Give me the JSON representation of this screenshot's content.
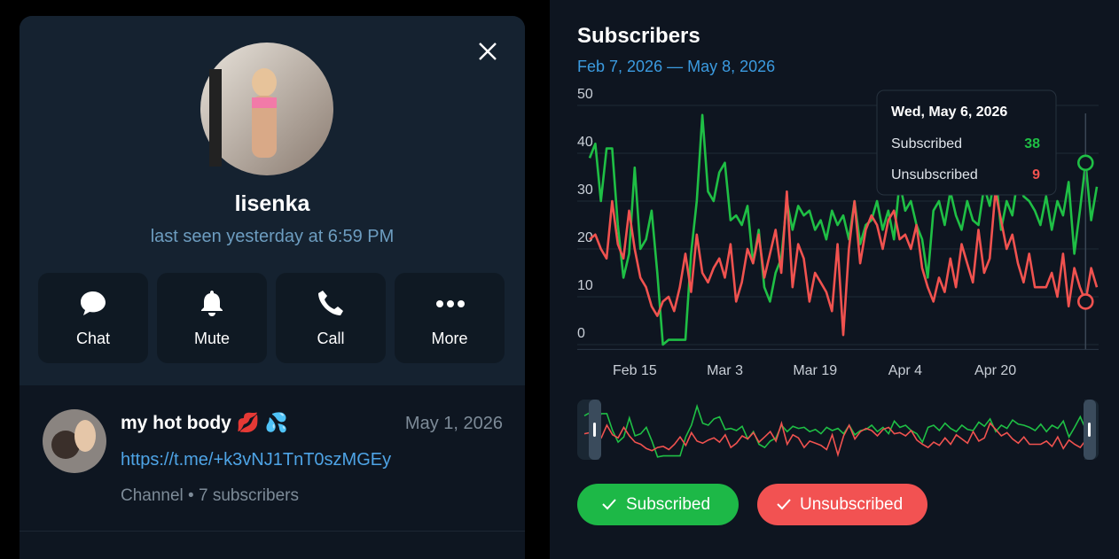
{
  "profile": {
    "name": "lisenka",
    "status": "last seen yesterday at 6:59 PM",
    "actions": [
      "Chat",
      "Mute",
      "Call",
      "More"
    ],
    "channel": {
      "title": "my hot body 💋 💦",
      "date": "May 1, 2026",
      "link": "https://t.me/+k3vNJ1TnT0szMGEy",
      "meta": "Channel • 7 subscribers"
    }
  },
  "chart_data": {
    "type": "line",
    "title": "Subscribers",
    "subtitle": "Feb 7, 2026 — May 8, 2026",
    "x": [
      "2026-02-07",
      "2026-02-08",
      "2026-02-09",
      "2026-02-10",
      "2026-02-11",
      "2026-02-12",
      "2026-02-13",
      "2026-02-14",
      "2026-02-15",
      "2026-02-16",
      "2026-02-17",
      "2026-02-18",
      "2026-02-19",
      "2026-02-20",
      "2026-02-21",
      "2026-02-22",
      "2026-02-23",
      "2026-02-24",
      "2026-02-25",
      "2026-02-26",
      "2026-02-27",
      "2026-02-28",
      "2026-03-01",
      "2026-03-02",
      "2026-03-03",
      "2026-03-04",
      "2026-03-05",
      "2026-03-06",
      "2026-03-07",
      "2026-03-08",
      "2026-03-09",
      "2026-03-10",
      "2026-03-11",
      "2026-03-12",
      "2026-03-13",
      "2026-03-14",
      "2026-03-15",
      "2026-03-16",
      "2026-03-17",
      "2026-03-18",
      "2026-03-19",
      "2026-03-20",
      "2026-03-21",
      "2026-03-22",
      "2026-03-23",
      "2026-03-24",
      "2026-03-25",
      "2026-03-26",
      "2026-03-27",
      "2026-03-28",
      "2026-03-29",
      "2026-03-30",
      "2026-03-31",
      "2026-04-01",
      "2026-04-02",
      "2026-04-03",
      "2026-04-04",
      "2026-04-05",
      "2026-04-06",
      "2026-04-07",
      "2026-04-08",
      "2026-04-09",
      "2026-04-10",
      "2026-04-11",
      "2026-04-12",
      "2026-04-13",
      "2026-04-14",
      "2026-04-15",
      "2026-04-16",
      "2026-04-17",
      "2026-04-18",
      "2026-04-19",
      "2026-04-20",
      "2026-04-21",
      "2026-04-22",
      "2026-04-23",
      "2026-04-24",
      "2026-04-25",
      "2026-04-26",
      "2026-04-27",
      "2026-04-28",
      "2026-04-29",
      "2026-04-30",
      "2026-05-01",
      "2026-05-02",
      "2026-05-03",
      "2026-05-04",
      "2026-05-05",
      "2026-05-06",
      "2026-05-07",
      "2026-05-08"
    ],
    "series": [
      {
        "name": "Subscribed",
        "color": "#1fbf45",
        "values": [
          39,
          42,
          30,
          41,
          41,
          25,
          14,
          19,
          37,
          20,
          22,
          28,
          15,
          0,
          1,
          1,
          1,
          1,
          19,
          30,
          48,
          32,
          30,
          36,
          38,
          26,
          27,
          25,
          29,
          17,
          24,
          12,
          9,
          15,
          18,
          30,
          24,
          29,
          27,
          28,
          24,
          26,
          22,
          28,
          25,
          27,
          22,
          30,
          21,
          25,
          26,
          30,
          24,
          28,
          22,
          34,
          28,
          30,
          25,
          22,
          14,
          28,
          30,
          25,
          32,
          27,
          24,
          30,
          26,
          25,
          33,
          29,
          36,
          24,
          30,
          27,
          35,
          31,
          30,
          28,
          25,
          31,
          24,
          30,
          27,
          34,
          19,
          28,
          38,
          26,
          33
        ]
      },
      {
        "name": "Unsubscribed",
        "color": "#f0524f",
        "values": [
          22,
          23,
          20,
          18,
          30,
          21,
          18,
          28,
          20,
          14,
          12,
          8,
          6,
          9,
          10,
          7,
          12,
          19,
          11,
          23,
          15,
          13,
          16,
          18,
          14,
          21,
          9,
          13,
          20,
          17,
          23,
          14,
          19,
          24,
          15,
          32,
          12,
          21,
          18,
          9,
          15,
          13,
          11,
          7,
          21,
          2,
          20,
          30,
          17,
          24,
          27,
          25,
          20,
          26,
          28,
          22,
          23,
          20,
          25,
          16,
          12,
          9,
          14,
          11,
          18,
          12,
          21,
          17,
          13,
          24,
          15,
          18,
          32,
          26,
          20,
          23,
          17,
          13,
          19,
          12,
          12,
          12,
          15,
          10,
          19,
          8,
          16,
          12,
          9,
          16,
          12
        ]
      }
    ],
    "ylim": [
      -1,
      51
    ],
    "yticks": [
      0,
      10,
      20,
      30,
      40,
      50
    ],
    "grid": true,
    "xticks": [
      {
        "value": "2026-02-15",
        "label": "Feb 15"
      },
      {
        "value": "2026-03-03",
        "label": "Mar 3"
      },
      {
        "value": "2026-03-19",
        "label": "Mar 19"
      },
      {
        "value": "2026-04-04",
        "label": "Apr 4"
      },
      {
        "value": "2026-04-20",
        "label": "Apr 20"
      }
    ],
    "tooltip": {
      "title": "Wed, May 6, 2026",
      "rows": [
        {
          "label": "Subscribed",
          "value": 38
        },
        {
          "label": "Unsubscribed",
          "value": 9
        }
      ]
    }
  }
}
